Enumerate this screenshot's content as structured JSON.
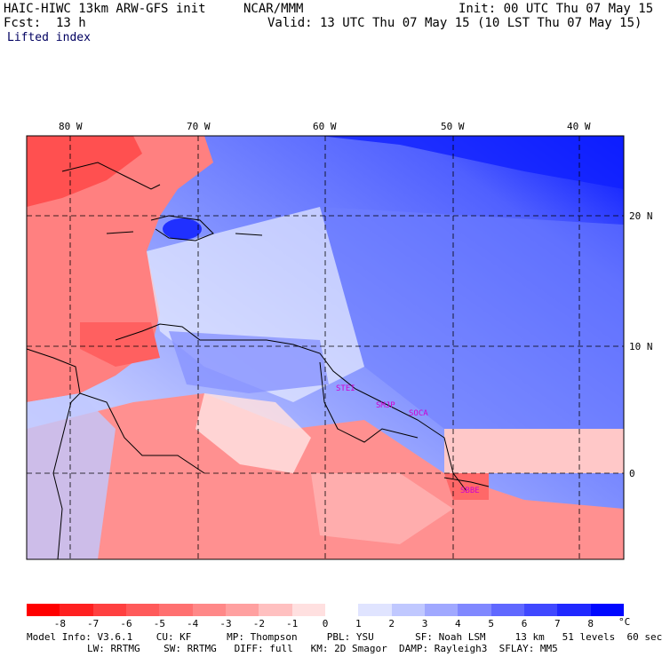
{
  "header": {
    "model": "HAIC-HIWC 13km ARW-GFS init",
    "center": "NCAR/MMM",
    "init": "Init: 00 UTC Thu 07 May 15",
    "fcst": "Fcst:  13 h",
    "valid": "Valid: 13 UTC Thu 07 May 15 (10 LST Thu 07 May 15)",
    "field": "Lifted index"
  },
  "lon_labels": [
    "80 W",
    "70 W",
    "60 W",
    "50 W",
    "40 W"
  ],
  "lat_labels": [
    "20 N",
    "10 N",
    "0"
  ],
  "stations": [
    "STEI",
    "SMJP",
    "SOCA",
    "SBBE"
  ],
  "colorbar": {
    "unit": "°C",
    "ticks": [
      "-8",
      "-7",
      "-6",
      "-5",
      "-4",
      "-3",
      "-2",
      "-1",
      "0",
      "1",
      "2",
      "3",
      "4",
      "5",
      "6",
      "7",
      "8"
    ],
    "colors": [
      "#ff0000",
      "#ff2020",
      "#ff4040",
      "#ff5a5a",
      "#ff7070",
      "#ff8888",
      "#ffa0a0",
      "#ffc0c0",
      "#ffe0e0",
      "#ffffff",
      "#e0e4ff",
      "#c0c8ff",
      "#a0a8ff",
      "#8088ff",
      "#6068ff",
      "#4048ff",
      "#2028ff",
      "#0008ff"
    ]
  },
  "footer": {
    "line1": "Model Info: V3.6.1    CU: KF      MP: Thompson     PBL: YSU       SF: Noah LSM     13 km   51 levels  60 sec",
    "line2": "LW: RRTMG    SW: RRTMG   DIFF: full   KM: 2D Smagor  DAMP: Rayleigh3  SFLAY: MM5"
  }
}
